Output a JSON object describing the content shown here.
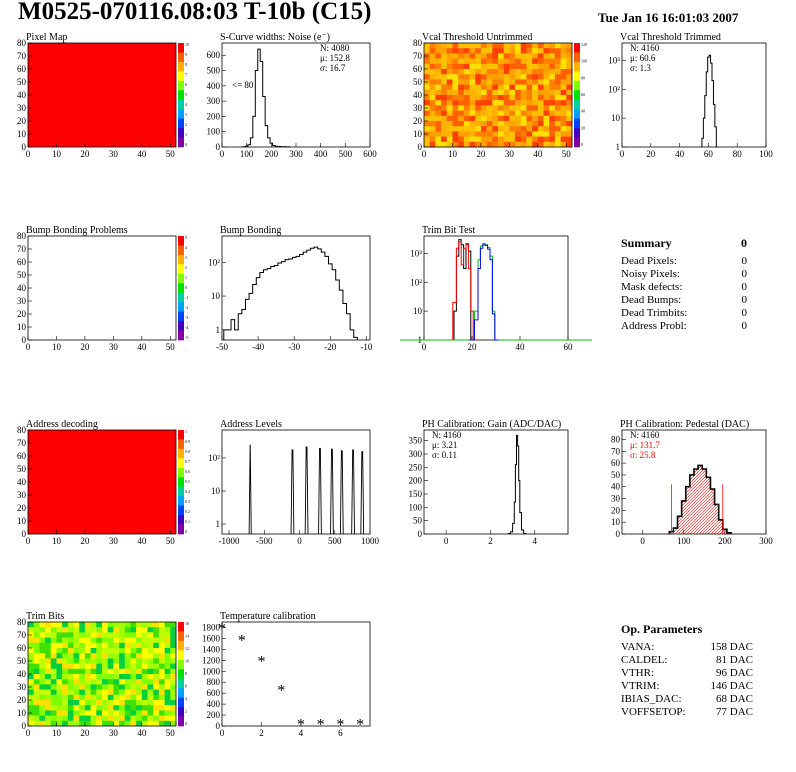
{
  "header": {
    "title": "M0525-070116.08:03 T-10b (C15)",
    "timestamp": "Tue Jan 16 16:01:03 2007"
  },
  "palette": {
    "red": "#ff0000",
    "yellow_orange": "#ffb000",
    "green_fit": "#00c000",
    "blue_fit": "#0000ff",
    "hist_line": "#000000",
    "stat_red": "#ff0000"
  },
  "chart_data": [
    {
      "id": "pixel-map",
      "type": "heatmap",
      "title": "Pixel Map",
      "x_ticks": [
        "0",
        "10",
        "20",
        "30",
        "40",
        "50"
      ],
      "y_ticks": [
        "0",
        "10",
        "20",
        "30",
        "40",
        "50",
        "60",
        "70",
        "80"
      ],
      "xlim": [
        0,
        52
      ],
      "ylim": [
        0,
        80
      ],
      "fill": "uniform-red",
      "colorbar_ticks": [
        "10",
        "9",
        "8",
        "7",
        "6",
        "5",
        "4",
        "3",
        "2",
        "1",
        "0"
      ]
    },
    {
      "id": "scurve-widths",
      "type": "bar",
      "title": "S-Curve widths: Noise (e⁻)",
      "x_ticks": [
        "0",
        "100",
        "200",
        "300",
        "400",
        "500",
        "600"
      ],
      "y_ticks": [
        "0",
        "100",
        "200",
        "300",
        "400",
        "500",
        "600"
      ],
      "xlim": [
        0,
        600
      ],
      "ylim": [
        0,
        680
      ],
      "stats": [
        "N: 4080",
        "μ: 152.8",
        "σ: 16.7"
      ],
      "annotation": "<= 80",
      "x": [
        90,
        100,
        110,
        120,
        130,
        140,
        150,
        160,
        170,
        180,
        190,
        200,
        210,
        220,
        230,
        250,
        270
      ],
      "values": [
        2,
        5,
        15,
        60,
        200,
        500,
        640,
        560,
        330,
        140,
        60,
        25,
        10,
        5,
        3,
        2,
        1
      ]
    },
    {
      "id": "vcal-untrimmed",
      "type": "heatmap",
      "title": "Vcal Threshold Untrimmed",
      "x_ticks": [
        "0",
        "10",
        "20",
        "30",
        "40",
        "50"
      ],
      "y_ticks": [
        "0",
        "10",
        "20",
        "30",
        "40",
        "50",
        "60",
        "70",
        "80"
      ],
      "xlim": [
        0,
        52
      ],
      "ylim": [
        0,
        80
      ],
      "fill": "noisy-orange",
      "colorbar_ticks": [
        "120",
        "100",
        "80",
        "60",
        "40",
        "20",
        "0"
      ]
    },
    {
      "id": "vcal-trimmed",
      "type": "bar",
      "title": "Vcal Threshold Trimmed",
      "log_y": true,
      "x_ticks": [
        "0",
        "20",
        "40",
        "60",
        "80",
        "100"
      ],
      "y_ticks": [
        "1",
        "10",
        "10²",
        "10³"
      ],
      "xlim": [
        0,
        100
      ],
      "ylim": [
        1,
        4000
      ],
      "stats": [
        "N: 4160",
        "μ: 60.6",
        "σ: 1.3"
      ],
      "x": [
        56,
        57,
        58,
        59,
        60,
        61,
        62,
        63,
        64,
        65,
        66
      ],
      "values": [
        2,
        10,
        60,
        400,
        1300,
        1500,
        800,
        200,
        30,
        5,
        1
      ]
    },
    {
      "id": "bump-bonding-problems",
      "type": "heatmap",
      "title": "Bump Bonding Problems",
      "x_ticks": [
        "0",
        "10",
        "20",
        "30",
        "40",
        "50"
      ],
      "y_ticks": [
        "0",
        "10",
        "20",
        "30",
        "40",
        "50",
        "60",
        "70",
        "80"
      ],
      "xlim": [
        0,
        52
      ],
      "ylim": [
        0,
        80
      ],
      "fill": "empty",
      "colorbar_ticks": [
        "5",
        "4",
        "3",
        "2",
        "1",
        "0",
        "-1",
        "-2",
        "-3",
        "-4",
        "-5"
      ]
    },
    {
      "id": "bump-bonding",
      "type": "bar",
      "title": "Bump Bonding",
      "log_y": true,
      "x_ticks": [
        "-50",
        "-40",
        "-30",
        "-20",
        "-10"
      ],
      "y_ticks": [
        "1",
        "10",
        "10²"
      ],
      "xlim": [
        -50,
        -9
      ],
      "ylim": [
        0.5,
        600
      ],
      "x": [
        -49,
        -48,
        -47,
        -46,
        -45,
        -44,
        -43,
        -42,
        -41,
        -40,
        -39,
        -38,
        -37,
        -36,
        -35,
        -34,
        -33,
        -32,
        -31,
        -30,
        -29,
        -28,
        -27,
        -26,
        -25,
        -24,
        -23,
        -22,
        -21,
        -20,
        -19,
        -18,
        -17,
        -16,
        -15,
        -14,
        -13
      ],
      "values": [
        1,
        1,
        2,
        1,
        3,
        4,
        8,
        12,
        22,
        35,
        50,
        60,
        65,
        75,
        80,
        95,
        105,
        120,
        125,
        140,
        150,
        170,
        200,
        230,
        260,
        280,
        250,
        200,
        150,
        90,
        60,
        30,
        15,
        6,
        3,
        1,
        0.6
      ]
    },
    {
      "id": "trim-bit-test",
      "type": "line",
      "title": "Trim Bit Test",
      "log_y": true,
      "x_ticks": [
        "0",
        "20",
        "40",
        "60"
      ],
      "y_ticks": [
        "1",
        "10",
        "10²",
        "10³"
      ],
      "xlim": [
        0,
        60
      ],
      "ylim": [
        1,
        4000
      ],
      "series": [
        {
          "color": "#000000",
          "x": [
            10,
            12,
            13,
            14,
            15,
            16,
            17,
            18,
            19,
            20
          ],
          "values": [
            1,
            1,
            10,
            800,
            3000,
            2000,
            300,
            2000,
            1200,
            1
          ]
        },
        {
          "color": "#ff0000",
          "x": [
            11,
            13,
            14,
            15,
            16,
            17,
            18,
            19,
            20,
            21
          ],
          "values": [
            1,
            20,
            1500,
            2500,
            400,
            1500,
            2200,
            300,
            10,
            1
          ]
        },
        {
          "color": "#00c000",
          "x": [
            0,
            20,
            22,
            23,
            24,
            25,
            26,
            27,
            28,
            29,
            30,
            60
          ],
          "values": [
            1,
            1,
            10,
            600,
            1800,
            2200,
            2000,
            1600,
            800,
            10,
            1,
            1
          ]
        },
        {
          "color": "#0000ff",
          "x": [
            20,
            22,
            23,
            24,
            25,
            26,
            27,
            28,
            29,
            30
          ],
          "values": [
            1,
            5,
            300,
            1500,
            2000,
            1900,
            1400,
            600,
            8,
            1
          ]
        }
      ]
    },
    {
      "id": "address-decoding",
      "type": "heatmap",
      "title": "Address decoding",
      "x_ticks": [
        "0",
        "10",
        "20",
        "30",
        "40",
        "50"
      ],
      "y_ticks": [
        "0",
        "10",
        "20",
        "30",
        "40",
        "50",
        "60",
        "70",
        "80"
      ],
      "xlim": [
        0,
        52
      ],
      "ylim": [
        0,
        80
      ],
      "fill": "uniform-red",
      "colorbar_ticks": [
        "1",
        "0.9",
        "0.8",
        "0.7",
        "0.6",
        "0.5",
        "0.4",
        "0.3",
        "0.2",
        "0.1",
        "0"
      ]
    },
    {
      "id": "address-levels",
      "type": "bar",
      "title": "Address Levels",
      "log_y": true,
      "x_ticks": [
        "-1000",
        "-500",
        "0",
        "500",
        "1000"
      ],
      "y_ticks": [
        "1",
        "10",
        "10²"
      ],
      "xlim": [
        -1100,
        1000
      ],
      "ylim": [
        0.5,
        700
      ],
      "peaks": [
        {
          "x": -700,
          "h": 250,
          "w": 30
        },
        {
          "x": -100,
          "h": 180,
          "w": 40
        },
        {
          "x": 100,
          "h": 220,
          "w": 40
        },
        {
          "x": 290,
          "h": 200,
          "w": 40
        },
        {
          "x": 460,
          "h": 190,
          "w": 40
        },
        {
          "x": 600,
          "h": 170,
          "w": 40
        },
        {
          "x": 760,
          "h": 180,
          "w": 40
        },
        {
          "x": 890,
          "h": 160,
          "w": 40
        }
      ]
    },
    {
      "id": "ph-gain",
      "type": "bar",
      "title": "PH Calibration: Gain (ADC/DAC)",
      "x_ticks": [
        "0",
        "2",
        "4"
      ],
      "y_ticks": [
        "0",
        "50",
        "100",
        "150",
        "200",
        "250",
        "300",
        "350"
      ],
      "xlim": [
        -1,
        5.5
      ],
      "ylim": [
        0,
        390
      ],
      "stats": [
        "N: 4160",
        "μ: 3.21",
        "σ: 0.11"
      ],
      "x": [
        2.85,
        2.95,
        3.05,
        3.1,
        3.15,
        3.2,
        3.25,
        3.3,
        3.35,
        3.45,
        3.55
      ],
      "values": [
        2,
        8,
        40,
        120,
        260,
        370,
        330,
        200,
        80,
        15,
        2
      ]
    },
    {
      "id": "ph-pedestal",
      "type": "bar",
      "title": "PH Calibration: Pedestal (DAC)",
      "x_ticks": [
        "0",
        "100",
        "200",
        "300"
      ],
      "y_ticks": [
        "0",
        "10",
        "20",
        "30",
        "40",
        "50",
        "60",
        "70",
        "80"
      ],
      "xlim": [
        -50,
        300
      ],
      "ylim": [
        0,
        88
      ],
      "stats": [
        "N: 4160",
        "μ: 131.7",
        "σ: 25.8"
      ],
      "x": [
        70,
        80,
        90,
        100,
        110,
        120,
        130,
        140,
        150,
        160,
        170,
        180,
        190,
        200,
        210
      ],
      "values": [
        2,
        5,
        15,
        28,
        40,
        50,
        55,
        58,
        55,
        48,
        38,
        25,
        12,
        4,
        1
      ]
    },
    {
      "id": "trim-bits",
      "type": "heatmap",
      "title": "Trim Bits",
      "x_ticks": [
        "0",
        "10",
        "20",
        "30",
        "40",
        "50"
      ],
      "y_ticks": [
        "0",
        "10",
        "20",
        "30",
        "40",
        "50",
        "60",
        "70",
        "80"
      ],
      "xlim": [
        0,
        52
      ],
      "ylim": [
        0,
        80
      ],
      "fill": "noisy-green",
      "colorbar_ticks": [
        "16",
        "14",
        "12",
        "10",
        "8",
        "6",
        "4",
        "2",
        "0"
      ]
    },
    {
      "id": "temperature-calibration",
      "type": "scatter",
      "title": "Temperature calibration",
      "x_ticks": [
        "0",
        "2",
        "4",
        "6"
      ],
      "y_ticks": [
        "0",
        "200",
        "400",
        "600",
        "800",
        "1000",
        "1200",
        "1400",
        "1600",
        "1800"
      ],
      "xlim": [
        0,
        7.5
      ],
      "ylim": [
        0,
        1900
      ],
      "x": [
        0,
        1,
        2,
        3,
        4,
        5,
        6,
        7
      ],
      "values": [
        1780,
        1560,
        1180,
        650,
        30,
        30,
        30,
        30
      ]
    }
  ],
  "summary": {
    "title": "Summary",
    "title_value": "0",
    "rows": [
      {
        "label": "Dead Pixels:",
        "value": "0"
      },
      {
        "label": "Noisy Pixels:",
        "value": "0"
      },
      {
        "label": "Mask defects:",
        "value": "0"
      },
      {
        "label": "Dead Bumps:",
        "value": "0"
      },
      {
        "label": "Dead Trimbits:",
        "value": "0"
      },
      {
        "label": "Address Probl:",
        "value": "0"
      }
    ]
  },
  "op_params": {
    "title": "Op. Parameters",
    "rows": [
      {
        "label": "VANA:",
        "value": "158 DAC"
      },
      {
        "label": "CALDEL:",
        "value": "81 DAC"
      },
      {
        "label": "VTHR:",
        "value": "96 DAC"
      },
      {
        "label": "VTRIM:",
        "value": "146 DAC"
      },
      {
        "label": "IBIAS_DAC:",
        "value": "68 DAC"
      },
      {
        "label": "VOFFSETOP:",
        "value": "77 DAC"
      }
    ]
  }
}
